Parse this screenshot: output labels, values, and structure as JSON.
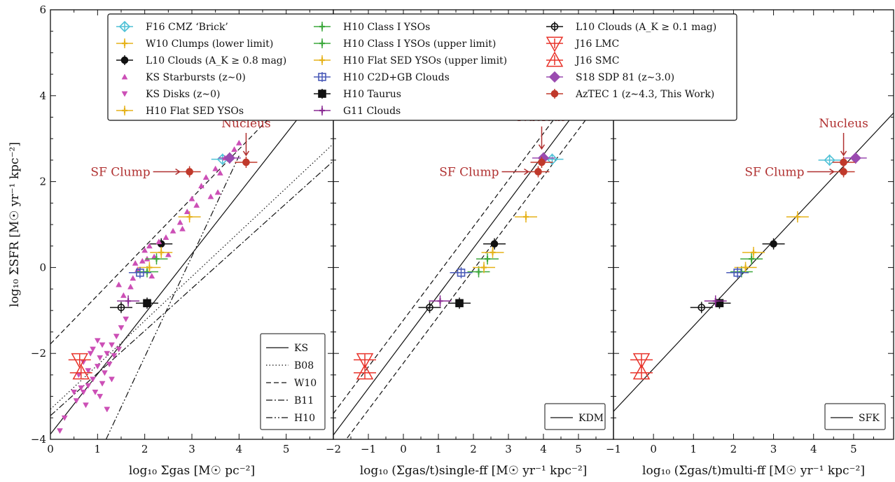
{
  "chart_data": [
    {
      "panel": "left",
      "type": "scatter",
      "xlabel": "log₁₀ Σgas [M☉ pc⁻²]",
      "ylabel": "log₁₀ ΣSFR [M☉ yr⁻¹ kpc⁻²]",
      "xlim": [
        0,
        6
      ],
      "ylim": [
        -4,
        6
      ],
      "x_ticks": [
        0,
        1,
        2,
        3,
        4,
        5
      ],
      "y_ticks": [
        -4,
        -2,
        0,
        2,
        4,
        6
      ],
      "annotations": [
        {
          "text": "Nucleus",
          "x": 4.15,
          "y": 2.45
        },
        {
          "text": "SF Clump",
          "x": 2.95,
          "y": 2.23
        }
      ],
      "series": [
        {
          "name": "F16 CMZ ‘Brick’",
          "color": "#4fc1d6",
          "marker": "diamond-open",
          "points": [
            [
              3.65,
              2.52
            ]
          ]
        },
        {
          "name": "W10 Clumps (lower limit)",
          "color": "#e6b21a",
          "marker": "plus",
          "points": [
            [
              2.95,
              1.18
            ]
          ]
        },
        {
          "name": "L10 Clouds (A_K ≥ 0.8 mag)",
          "color": "#111111",
          "marker": "circle",
          "points": [
            [
              2.35,
              0.55
            ]
          ]
        },
        {
          "name": "L10 Clouds (A_K ≥ 0.1 mag)",
          "color": "#111111",
          "marker": "circle-open",
          "points": [
            [
              1.5,
              -0.93
            ]
          ]
        },
        {
          "name": "KS Starbursts (z∼0)",
          "color": "#cc4fb6",
          "marker": "triangle-up",
          "points": [
            [
              3.9,
              2.75
            ],
            [
              3.7,
              2.55
            ],
            [
              3.5,
              2.3
            ],
            [
              3.3,
              2.1
            ],
            [
              3.6,
              2.2
            ],
            [
              3.2,
              1.9
            ],
            [
              3.4,
              1.65
            ],
            [
              3.1,
              1.45
            ],
            [
              2.9,
              1.3
            ],
            [
              2.75,
              1.05
            ],
            [
              2.6,
              0.85
            ],
            [
              2.45,
              0.7
            ],
            [
              2.3,
              0.6
            ],
            [
              2.1,
              0.5
            ],
            [
              2.0,
              0.4
            ],
            [
              2.2,
              0.25
            ],
            [
              1.95,
              0.15
            ],
            [
              1.85,
              -0.05
            ],
            [
              1.75,
              -0.25
            ],
            [
              1.7,
              -0.45
            ],
            [
              1.55,
              -0.65
            ],
            [
              1.45,
              -0.4
            ],
            [
              2.15,
              -0.2
            ],
            [
              2.5,
              0.3
            ],
            [
              3.0,
              1.6
            ],
            [
              3.55,
              1.75
            ],
            [
              2.8,
              0.9
            ],
            [
              4.0,
              2.9
            ],
            [
              1.8,
              0.1
            ],
            [
              2.05,
              0.2
            ]
          ]
        },
        {
          "name": "KS Disks (z∼0)",
          "color": "#cc4fb6",
          "marker": "triangle-down",
          "points": [
            [
              0.6,
              -2.5
            ],
            [
              0.7,
              -2.2
            ],
            [
              0.8,
              -2.4
            ],
            [
              0.85,
              -2.0
            ],
            [
              0.9,
              -2.6
            ],
            [
              1.0,
              -2.3
            ],
            [
              1.05,
              -2.1
            ],
            [
              1.1,
              -2.7
            ],
            [
              1.15,
              -2.45
            ],
            [
              1.2,
              -2.0
            ],
            [
              1.25,
              -2.25
            ],
            [
              1.3,
              -1.8
            ],
            [
              1.35,
              -2.05
            ],
            [
              0.5,
              -2.9
            ],
            [
              0.55,
              -3.1
            ],
            [
              0.75,
              -3.2
            ],
            [
              0.95,
              -2.9
            ],
            [
              1.05,
              -3.0
            ],
            [
              1.2,
              -3.3
            ],
            [
              1.4,
              -1.6
            ],
            [
              1.45,
              -1.9
            ],
            [
              1.5,
              -1.4
            ],
            [
              0.3,
              -3.5
            ],
            [
              0.2,
              -3.8
            ],
            [
              0.65,
              -2.8
            ],
            [
              0.9,
              -1.9
            ],
            [
              1.1,
              -1.8
            ],
            [
              1.3,
              -2.6
            ],
            [
              0.8,
              -2.75
            ],
            [
              1.6,
              -1.2
            ],
            [
              1.0,
              -1.7
            ],
            [
              0.7,
              -2.9
            ]
          ]
        },
        {
          "name": "H10 Flat SED YSOs",
          "color": "#e6b21a",
          "marker": "plus-open-square",
          "points": [
            [
              2.35,
              0.35
            ]
          ]
        },
        {
          "name": "H10 Class I YSOs",
          "color": "#3ca83c",
          "marker": "plus",
          "points": [
            [
              2.25,
              0.2
            ]
          ]
        },
        {
          "name": "H10 Class I YSOs (upper limit)",
          "color": "#3ca83c",
          "marker": "plus",
          "points": [
            [
              2.05,
              -0.1
            ]
          ]
        },
        {
          "name": "H10 Flat SED YSOs (upper limit)",
          "color": "#e6b21a",
          "marker": "plus",
          "points": [
            [
              2.1,
              0.0
            ]
          ]
        },
        {
          "name": "H10 C2D+GB Clouds",
          "color": "#4a5ab8",
          "marker": "square-open",
          "points": [
            [
              1.9,
              -0.12
            ]
          ]
        },
        {
          "name": "H10 Taurus",
          "color": "#111111",
          "marker": "square",
          "points": [
            [
              2.05,
              -0.83
            ]
          ]
        },
        {
          "name": "G11 Clouds",
          "color": "#8a2b93",
          "marker": "plus",
          "points": [
            [
              1.65,
              -0.78
            ]
          ]
        },
        {
          "name": "J16 LMC",
          "color": "#e8332a",
          "marker": "triangle-down-open",
          "points": [
            [
              0.62,
              -2.15
            ]
          ]
        },
        {
          "name": "J16 SMC",
          "color": "#e8332a",
          "marker": "triangle-up-open",
          "points": [
            [
              0.65,
              -2.45
            ]
          ]
        },
        {
          "name": "S18 SDP 81 (z∼3.0)",
          "color": "#9a4bb0",
          "marker": "diamond",
          "points": [
            [
              3.8,
              2.55
            ]
          ]
        },
        {
          "name": "AzTEC 1 (z∼4.3, This Work)",
          "color": "#c0392b",
          "marker": "circle",
          "points": [
            [
              4.15,
              2.45
            ],
            [
              2.95,
              2.23
            ]
          ]
        }
      ],
      "relations": [
        {
          "name": "KS",
          "style": "solid",
          "line": [
            [
              0,
              -3.88
            ],
            [
              6,
              4.52
            ]
          ]
        },
        {
          "name": "B08",
          "style": "dotted",
          "line": [
            [
              0,
              -3.3
            ],
            [
              6,
              2.88
            ]
          ]
        },
        {
          "name": "W10",
          "style": "dashed",
          "line": [
            [
              0,
              -1.78
            ],
            [
              6,
              5.02
            ]
          ]
        },
        {
          "name": "B11",
          "style": "dashdot",
          "line": [
            [
              0,
              -3.45
            ],
            [
              6,
              2.48
            ]
          ]
        },
        {
          "name": "H10",
          "style": "dashdotdot",
          "line": [
            [
              1.18,
              -4.0
            ],
            [
              4.0,
              2.6
            ]
          ]
        }
      ]
    },
    {
      "panel": "middle",
      "type": "scatter",
      "xlabel": "log₁₀ (Σgas/t)single-ff [M☉ yr⁻¹ kpc⁻²]",
      "xlim": [
        -2,
        6
      ],
      "ylim": [
        -4,
        6
      ],
      "x_ticks": [
        -2,
        -1,
        0,
        1,
        2,
        3,
        4,
        5
      ],
      "annotations": [
        {
          "text": "Nucleus",
          "x": 3.95,
          "y": 2.6
        },
        {
          "text": "SF Clump",
          "x": 3.85,
          "y": 2.23
        }
      ],
      "series": [
        {
          "name": "F16 CMZ ‘Brick’",
          "color": "#4fc1d6",
          "marker": "diamond-open",
          "points": [
            [
              4.25,
              2.52
            ]
          ]
        },
        {
          "name": "W10 Clumps (lower limit)",
          "color": "#e6b21a",
          "marker": "plus",
          "points": [
            [
              3.5,
              1.18
            ]
          ]
        },
        {
          "name": "L10 Clouds (A_K ≥ 0.8 mag)",
          "color": "#111111",
          "marker": "circle",
          "points": [
            [
              2.6,
              0.55
            ]
          ]
        },
        {
          "name": "L10 Clouds (A_K ≥ 0.1 mag)",
          "color": "#111111",
          "marker": "circle-open",
          "points": [
            [
              0.75,
              -0.93
            ]
          ]
        },
        {
          "name": "H10 Flat SED YSOs",
          "color": "#e6b21a",
          "marker": "plus",
          "points": [
            [
              2.55,
              0.35
            ]
          ]
        },
        {
          "name": "H10 Class I YSOs",
          "color": "#3ca83c",
          "marker": "plus",
          "points": [
            [
              2.4,
              0.2
            ]
          ]
        },
        {
          "name": "H10 Class I YSOs (upper limit)",
          "color": "#3ca83c",
          "marker": "plus",
          "points": [
            [
              2.15,
              -0.1
            ]
          ]
        },
        {
          "name": "H10 Flat SED YSOs (upper limit)",
          "color": "#e6b21a",
          "marker": "plus",
          "points": [
            [
              2.3,
              0.0
            ]
          ]
        },
        {
          "name": "H10 C2D+GB Clouds",
          "color": "#4a5ab8",
          "marker": "square-open",
          "points": [
            [
              1.65,
              -0.12
            ]
          ]
        },
        {
          "name": "H10 Taurus",
          "color": "#111111",
          "marker": "square",
          "points": [
            [
              1.6,
              -0.83
            ]
          ]
        },
        {
          "name": "G11 Clouds",
          "color": "#8a2b93",
          "marker": "plus",
          "points": [
            [
              1.05,
              -0.78
            ]
          ]
        },
        {
          "name": "J16 LMC",
          "color": "#e8332a",
          "marker": "triangle-down-open",
          "points": [
            [
              -1.1,
              -2.15
            ]
          ]
        },
        {
          "name": "J16 SMC",
          "color": "#e8332a",
          "marker": "triangle-up-open",
          "points": [
            [
              -1.1,
              -2.45
            ]
          ]
        },
        {
          "name": "S18 SDP 81 (z∼3.0)",
          "color": "#9a4bb0",
          "marker": "diamond",
          "points": [
            [
              4.0,
              2.55
            ]
          ]
        },
        {
          "name": "AzTEC 1 (z∼4.3, This Work)",
          "color": "#c0392b",
          "marker": "circle",
          "points": [
            [
              3.95,
              2.45
            ],
            [
              3.85,
              2.23
            ]
          ]
        }
      ],
      "relations": [
        {
          "name": "KDM",
          "style": "solid",
          "line": [
            [
              -2,
              -3.9
            ],
            [
              6,
              4.8
            ]
          ]
        },
        {
          "name": "",
          "style": "dashed",
          "line": [
            [
              -2,
              -3.4
            ],
            [
              6,
              5.3
            ]
          ]
        },
        {
          "name": "",
          "style": "dashed",
          "line": [
            [
              -2,
              -4.4
            ],
            [
              6,
              4.3
            ]
          ]
        }
      ]
    },
    {
      "panel": "right",
      "type": "scatter",
      "xlabel": "log₁₀ (Σgas/t)multi-ff [M☉ yr⁻¹ kpc⁻²]",
      "xlim": [
        -1,
        6
      ],
      "ylim": [
        -4,
        6
      ],
      "x_ticks": [
        -1,
        0,
        1,
        2,
        3,
        4,
        5
      ],
      "annotations": [
        {
          "text": "Nucleus",
          "x": 4.75,
          "y": 2.45
        },
        {
          "text": "SF Clump",
          "x": 4.75,
          "y": 2.23
        }
      ],
      "series": [
        {
          "name": "F16 CMZ ‘Brick’",
          "color": "#4fc1d6",
          "marker": "diamond-open",
          "points": [
            [
              4.4,
              2.5
            ]
          ]
        },
        {
          "name": "W10 Clumps (lower limit)",
          "color": "#e6b21a",
          "marker": "plus",
          "points": [
            [
              3.6,
              1.18
            ]
          ]
        },
        {
          "name": "L10 Clouds (A_K ≥ 0.8 mag)",
          "color": "#111111",
          "marker": "circle",
          "points": [
            [
              3.0,
              0.55
            ]
          ]
        },
        {
          "name": "L10 Clouds (A_K ≥ 0.1 mag)",
          "color": "#111111",
          "marker": "circle-open",
          "points": [
            [
              1.2,
              -0.93
            ]
          ]
        },
        {
          "name": "H10 Flat SED YSOs",
          "color": "#e6b21a",
          "marker": "plus",
          "points": [
            [
              2.5,
              0.35
            ]
          ]
        },
        {
          "name": "H10 Class I YSOs",
          "color": "#3ca83c",
          "marker": "plus",
          "points": [
            [
              2.45,
              0.2
            ]
          ]
        },
        {
          "name": "H10 Class I YSOs (upper limit)",
          "color": "#3ca83c",
          "marker": "plus",
          "points": [
            [
              2.2,
              -0.1
            ]
          ]
        },
        {
          "name": "H10 Flat SED YSOs (upper limit)",
          "color": "#e6b21a",
          "marker": "plus",
          "points": [
            [
              2.3,
              0.0
            ]
          ]
        },
        {
          "name": "H10 C2D+GB Clouds",
          "color": "#4a5ab8",
          "marker": "square-open",
          "points": [
            [
              2.1,
              -0.12
            ]
          ]
        },
        {
          "name": "H10 Taurus",
          "color": "#111111",
          "marker": "square",
          "points": [
            [
              1.65,
              -0.83
            ]
          ]
        },
        {
          "name": "G11 Clouds",
          "color": "#8a2b93",
          "marker": "plus",
          "points": [
            [
              1.55,
              -0.78
            ]
          ]
        },
        {
          "name": "J16 LMC",
          "color": "#e8332a",
          "marker": "triangle-down-open",
          "points": [
            [
              -0.3,
              -2.15
            ]
          ]
        },
        {
          "name": "J16 SMC",
          "color": "#e8332a",
          "marker": "triangle-up-open",
          "points": [
            [
              -0.3,
              -2.45
            ]
          ]
        },
        {
          "name": "S18 SDP 81 (z∼3.0)",
          "color": "#9a4bb0",
          "marker": "diamond",
          "points": [
            [
              5.05,
              2.55
            ]
          ]
        },
        {
          "name": "AzTEC 1 (z∼4.3, This Work)",
          "color": "#c0392b",
          "marker": "circle",
          "points": [
            [
              4.75,
              2.45
            ],
            [
              4.75,
              2.23
            ]
          ]
        }
      ],
      "relations": [
        {
          "name": "SFK",
          "style": "solid",
          "line": [
            [
              -1,
              -3.35
            ],
            [
              6,
              3.6
            ]
          ]
        }
      ]
    }
  ],
  "legend_left_col": [
    "F16 CMZ ‘Brick’",
    "W10 Clumps (lower limit)",
    "L10 Clouds (A_K ≥ 0.8 mag)",
    "KS Starbursts (z∼0)",
    "KS Disks (z∼0)",
    "H10 Flat SED YSOs"
  ],
  "legend_mid_col": [
    "H10 Class I YSOs",
    "H10 Class I YSOs (upper limit)",
    "H10 Flat SED YSOs (upper limit)",
    "H10 C2D+GB Clouds",
    "H10 Taurus",
    "G11 Clouds"
  ],
  "legend_right_col": [
    "L10 Clouds (A_K ≥ 0.1 mag)",
    "J16 LMC",
    "J16 SMC",
    "S18 SDP 81 (z∼3.0)",
    "AzTEC 1 (z∼4.3, This Work)"
  ]
}
